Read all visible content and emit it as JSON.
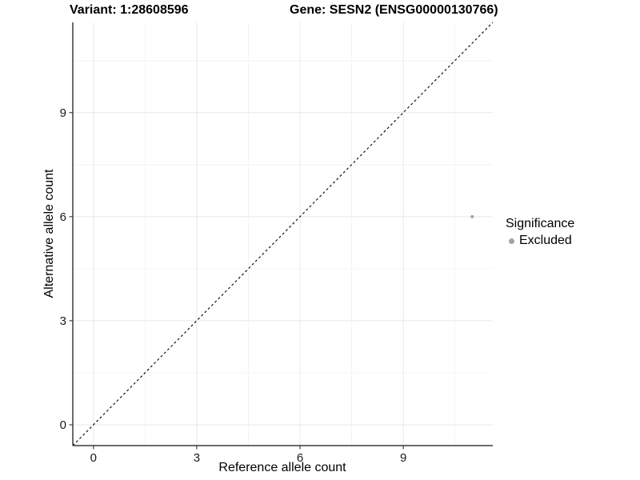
{
  "chart_data": {
    "type": "scatter",
    "title_left": "Variant: 1:28608596",
    "title_right": "Gene: SESN2 (ENSG00000130766)",
    "xlabel": "Reference allele count",
    "ylabel": "Alternative allele count",
    "xlim": [
      -0.6,
      11.6
    ],
    "ylim": [
      -0.6,
      11.6
    ],
    "x_major_ticks": [
      0,
      3,
      6,
      9
    ],
    "y_major_ticks": [
      0,
      3,
      6,
      9
    ],
    "x_minor_ticks": [
      1.5,
      4.5,
      7.5,
      10.5
    ],
    "y_minor_ticks": [
      1.5,
      4.5,
      7.5,
      10.5
    ],
    "grid": "on",
    "series": [
      {
        "name": "Excluded",
        "color": "#a3a3a3",
        "points": [
          {
            "x": 11,
            "y": 6
          }
        ]
      }
    ],
    "identity_line": {
      "style": "dashed",
      "color": "#000000",
      "from": -0.6,
      "to": 11.6
    },
    "legend": {
      "title": "Significance",
      "position": "right",
      "entries": [
        {
          "label": "Excluded",
          "color": "#a3a3a3"
        }
      ]
    },
    "style": {
      "grid_major_color": "#e8e8e8",
      "grid_minor_color": "#f4f4f4",
      "axis_color": "#3c3c3c",
      "tick_color": "#333333",
      "tick_label_color": "#1a1a1a",
      "point_radius": 2,
      "tick_label_size": 15
    }
  }
}
